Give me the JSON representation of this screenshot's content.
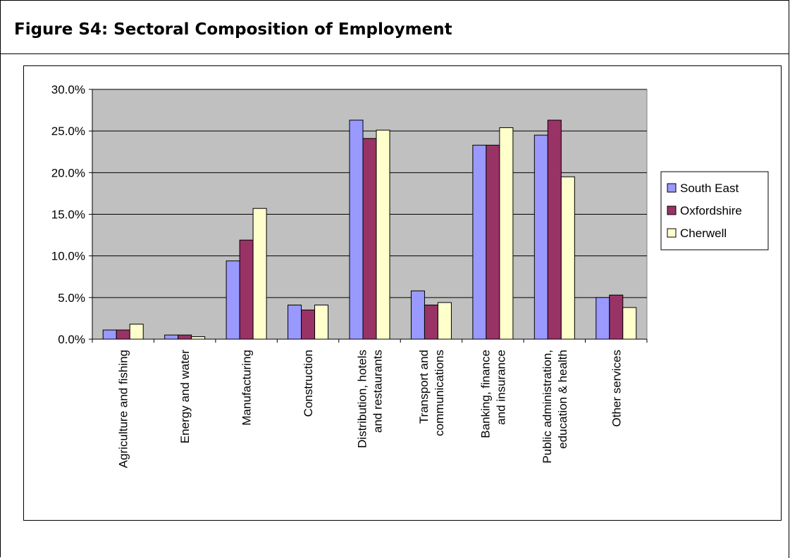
{
  "figure": {
    "title": "Figure S4:  Sectoral Composition of Employment"
  },
  "chart_data": {
    "type": "bar",
    "title": "",
    "xlabel": "",
    "ylabel": "",
    "ylim": [
      0,
      0.3
    ],
    "y_tick_labels": [
      "0.0%",
      "5.0%",
      "10.0%",
      "15.0%",
      "20.0%",
      "25.0%",
      "30.0%"
    ],
    "grid": true,
    "legend_position": "right",
    "categories": [
      [
        "Agriculture and fishing"
      ],
      [
        "Energy and water"
      ],
      [
        "Manufacturing"
      ],
      [
        "Construction"
      ],
      [
        "Distribution, hotels",
        "and restaurants"
      ],
      [
        "Transport and",
        "communications"
      ],
      [
        "Banking, finance",
        "and insurance"
      ],
      [
        "Public administration,",
        "education & health"
      ],
      [
        "Other services"
      ]
    ],
    "series": [
      {
        "name": "South East",
        "color": "#9999ff",
        "values": [
          0.011,
          0.005,
          0.094,
          0.041,
          0.263,
          0.058,
          0.233,
          0.245,
          0.05
        ]
      },
      {
        "name": "Oxfordshire",
        "color": "#993366",
        "values": [
          0.011,
          0.005,
          0.119,
          0.035,
          0.241,
          0.041,
          0.233,
          0.263,
          0.053
        ]
      },
      {
        "name": "Cherwell",
        "color": "#ffffcc",
        "values": [
          0.018,
          0.003,
          0.157,
          0.041,
          0.251,
          0.044,
          0.254,
          0.195,
          0.038
        ]
      }
    ],
    "plot_background": "#c0c0c0"
  }
}
